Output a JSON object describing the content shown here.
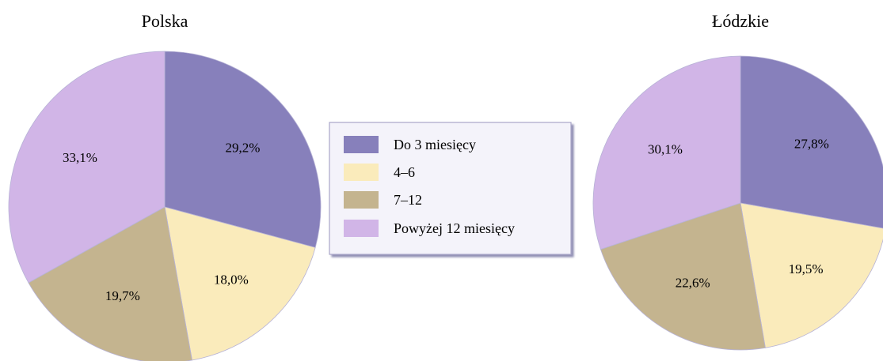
{
  "legend": {
    "items": [
      {
        "label": "Do 3 miesięcy",
        "color": "#8780BB"
      },
      {
        "label": "4–6",
        "color": "#FAEBBB"
      },
      {
        "label": "7–12",
        "color": "#C4B48F"
      },
      {
        "label": "Powyżej 12 miesięcy",
        "color": "#D1B5E7"
      }
    ]
  },
  "chart_data": [
    {
      "type": "pie",
      "title": "Polska",
      "categories": [
        "Do 3 miesięcy",
        "4–6",
        "7–12",
        "Powyżej 12 miesięcy"
      ],
      "values": [
        29.2,
        18.0,
        19.7,
        33.1
      ],
      "value_labels": [
        "29,2%",
        "18,0%",
        "19,7%",
        "33,1%"
      ],
      "colors": [
        "#8780BB",
        "#FAEBBB",
        "#C4B48F",
        "#D1B5E7"
      ],
      "start_angle_deg": 0,
      "direction": "clockwise"
    },
    {
      "type": "pie",
      "title": "Łódzkie",
      "categories": [
        "Do 3 miesięcy",
        "4–6",
        "7–12",
        "Powyżej 12 miesięcy"
      ],
      "values": [
        27.8,
        19.5,
        22.6,
        30.1
      ],
      "value_labels": [
        "27,8%",
        "19,5%",
        "22,6%",
        "30,1%"
      ],
      "colors": [
        "#8780BB",
        "#FAEBBB",
        "#C4B48F",
        "#D1B5E7"
      ],
      "start_angle_deg": 0,
      "direction": "clockwise"
    }
  ]
}
